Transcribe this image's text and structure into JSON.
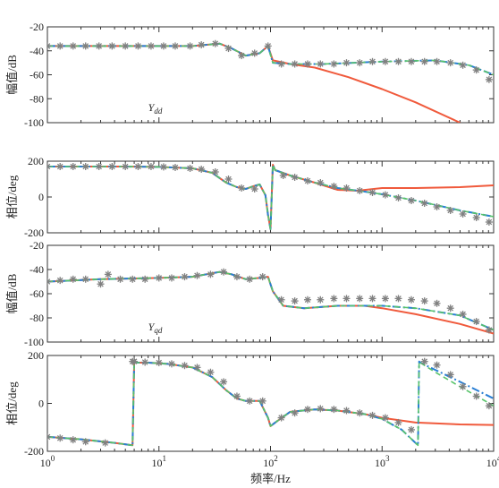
{
  "chart_data": {
    "type": "line",
    "xlabel": "频率/Hz",
    "xscale": "log",
    "xlim": [
      1,
      10000
    ],
    "x_tick_labels": [
      "10^0",
      "10^1",
      "10^2",
      "10^3",
      "10^4"
    ],
    "colors": {
      "red": "#f05a3c",
      "blue_dashdot": "#2a7fd4",
      "green_dash": "#58c36a",
      "marker": "#808080"
    },
    "panels": [
      {
        "ylabel": "幅值/dB",
        "ylim": [
          -100,
          -20
        ],
        "yticks": [
          "-20",
          "-40",
          "-60",
          "-80",
          "-100"
        ],
        "annotation_main": "Y",
        "annotation_sub": "dd",
        "series": [
          {
            "color": "red",
            "x": [
              1,
              5,
              10,
              20,
              35,
              45,
              60,
              80,
              95,
              105,
              150,
              250,
              500,
              1000,
              2000,
              5000
            ],
            "y": [
              -36,
              -36,
              -36,
              -36,
              -34,
              -38,
              -44,
              -42,
              -36,
              -48,
              -51,
              -54,
              -62,
              -72,
              -83,
              -100
            ]
          },
          {
            "color": "blue_dashdot",
            "x": [
              1,
              5,
              10,
              20,
              35,
              45,
              60,
              80,
              95,
              105,
              150,
              300,
              1000,
              3000,
              6000,
              10000
            ],
            "y": [
              -36,
              -36,
              -36,
              -36,
              -34,
              -38,
              -44,
              -42,
              -36,
              -50,
              -51,
              -51,
              -49,
              -48,
              -52,
              -60
            ]
          },
          {
            "color": "green_dash",
            "x": [
              1,
              5,
              10,
              20,
              35,
              45,
              60,
              80,
              95,
              105,
              150,
              300,
              1000,
              3000,
              6000,
              10000
            ],
            "y": [
              -36,
              -36,
              -36,
              -36,
              -34,
              -38,
              -44,
              -42,
              -36,
              -50,
              -51,
              -51,
              -49,
              -48,
              -52,
              -60
            ]
          },
          {
            "color": "marker",
            "x": [
              1,
              1.3,
              1.7,
              2.2,
              2.9,
              3.8,
              5,
              6.5,
              8.5,
              11,
              14,
              19,
              24,
              32,
              42,
              55,
              72,
              95,
              125,
              165,
              215,
              280,
              370,
              480,
              630,
              820,
              1070,
              1400,
              1830,
              2400,
              3100,
              4100,
              5300,
              7000,
              9100
            ],
            "y": [
              -36,
              -36,
              -36,
              -36,
              -36,
              -36,
              -36,
              -36,
              -36,
              -36,
              -36,
              -36,
              -35,
              -34,
              -38,
              -44,
              -42,
              -36,
              -51,
              -51,
              -51,
              -51,
              -51,
              -50,
              -50,
              -49,
              -49,
              -49,
              -49,
              -49,
              -49,
              -50,
              -52,
              -56,
              -64
            ]
          }
        ]
      },
      {
        "ylabel": "相位/deg",
        "ylim": [
          -200,
          200
        ],
        "yticks": [
          "200",
          "0",
          "-200"
        ],
        "series": [
          {
            "color": "red",
            "x": [
              1,
              5,
              10,
              20,
              30,
              40,
              50,
              60,
              70,
              80,
              90,
              95,
              100,
              105,
              110,
              150,
              250,
              400,
              600,
              1000,
              2000,
              5000,
              10000
            ],
            "y": [
              170,
              170,
              168,
              160,
              135,
              80,
              55,
              45,
              60,
              70,
              10,
              -100,
              -180,
              180,
              150,
              120,
              80,
              40,
              35,
              50,
              50,
              55,
              65
            ]
          },
          {
            "color": "blue_dashdot",
            "x": [
              1,
              5,
              10,
              20,
              30,
              40,
              50,
              60,
              70,
              80,
              90,
              95,
              100,
              105,
              110,
              150,
              250,
              400,
              700,
              1000,
              2000,
              5000,
              10000
            ],
            "y": [
              170,
              170,
              168,
              160,
              135,
              80,
              55,
              45,
              60,
              70,
              10,
              -100,
              -180,
              180,
              150,
              120,
              80,
              50,
              30,
              15,
              -20,
              -75,
              -110
            ]
          },
          {
            "color": "green_dash",
            "x": [
              1,
              5,
              10,
              20,
              30,
              40,
              50,
              60,
              70,
              80,
              90,
              95,
              100,
              105,
              110,
              150,
              250,
              400,
              700,
              1000,
              2000,
              5000,
              10000
            ],
            "y": [
              170,
              170,
              168,
              160,
              135,
              80,
              55,
              45,
              60,
              70,
              10,
              -100,
              -180,
              180,
              150,
              120,
              80,
              50,
              30,
              15,
              -20,
              -75,
              -110
            ]
          },
          {
            "color": "marker",
            "x": [
              1,
              1.3,
              1.7,
              2.2,
              2.9,
              3.8,
              5,
              6.5,
              8.5,
              11,
              14,
              19,
              24,
              32,
              42,
              55,
              72,
              130,
              165,
              215,
              280,
              370,
              480,
              630,
              820,
              1070,
              1400,
              1830,
              2400,
              3100,
              4100,
              5300,
              7000,
              9100
            ],
            "y": [
              170,
              170,
              170,
              170,
              170,
              170,
              170,
              170,
              170,
              168,
              165,
              160,
              155,
              140,
              100,
              50,
              45,
              120,
              110,
              90,
              80,
              60,
              50,
              35,
              25,
              12,
              -5,
              -20,
              -35,
              -55,
              -75,
              -95,
              -115,
              -140
            ]
          }
        ]
      },
      {
        "ylabel": "幅值/dB",
        "ylim": [
          -100,
          -20
        ],
        "yticks": [
          "-20",
          "-40",
          "-60",
          "-80",
          "-100"
        ],
        "annotation_main": "Y",
        "annotation_sub": "qd",
        "series": [
          {
            "color": "red",
            "x": [
              1,
              3,
              10,
              20,
              35,
              45,
              60,
              80,
              95,
              105,
              130,
              200,
              400,
              700,
              1000,
              2000,
              5000,
              10000
            ],
            "y": [
              -50,
              -48,
              -47,
              -46,
              -42,
              -44,
              -48,
              -47,
              -46,
              -58,
              -70,
              -72,
              -70,
              -70,
              -72,
              -77,
              -85,
              -93
            ]
          },
          {
            "color": "blue_dashdot",
            "x": [
              1,
              3,
              10,
              20,
              35,
              45,
              60,
              80,
              95,
              105,
              130,
              200,
              400,
              700,
              1000,
              2000,
              5000,
              10000
            ],
            "y": [
              -50,
              -48,
              -47,
              -46,
              -42,
              -44,
              -48,
              -47,
              -46,
              -58,
              -70,
              -72,
              -70,
              -70,
              -70,
              -72,
              -78,
              -90
            ]
          },
          {
            "color": "green_dash",
            "x": [
              1,
              3,
              10,
              20,
              35,
              45,
              60,
              80,
              95,
              105,
              130,
              200,
              400,
              700,
              1000,
              2000,
              5000,
              10000
            ],
            "y": [
              -50,
              -48,
              -47,
              -46,
              -42,
              -44,
              -48,
              -47,
              -46,
              -58,
              -70,
              -72,
              -70,
              -70,
              -70,
              -72,
              -78,
              -90
            ]
          },
          {
            "color": "marker",
            "x": [
              1,
              1.3,
              1.7,
              2.2,
              3,
              3.5,
              4.5,
              5.8,
              7.5,
              10,
              13,
              17,
              22,
              29,
              38,
              50,
              65,
              85,
              125,
              165,
              215,
              280,
              370,
              480,
              630,
              820,
              1070,
              1400,
              1830,
              2400,
              3100,
              4100,
              5300,
              7000,
              9100
            ],
            "y": [
              -50,
              -49,
              -48,
              -48,
              -52,
              -44,
              -48,
              -48,
              -48,
              -47,
              -47,
              -46,
              -45,
              -44,
              -42,
              -46,
              -48,
              -46,
              -65,
              -66,
              -65,
              -65,
              -64,
              -64,
              -64,
              -64,
              -64,
              -64,
              -65,
              -66,
              -68,
              -72,
              -77,
              -83,
              -90
            ]
          }
        ]
      },
      {
        "ylabel": "相位/deg",
        "ylim": [
          -200,
          200
        ],
        "yticks": [
          "200",
          "0",
          "-200"
        ],
        "series": [
          {
            "color": "red",
            "x": [
              1,
              2,
              4,
              5.8,
              6,
              6.2,
              8,
              12,
              20,
              30,
              40,
              50,
              60,
              80,
              95,
              100,
              110,
              150,
              250,
              400,
              700,
              1000,
              2000,
              5000,
              10000
            ],
            "y": [
              -140,
              -150,
              -165,
              -175,
              175,
              170,
              170,
              165,
              150,
              110,
              55,
              20,
              10,
              10,
              -60,
              -95,
              -80,
              -35,
              -25,
              -30,
              -45,
              -60,
              -80,
              -88,
              -90
            ]
          },
          {
            "color": "blue_dashdot",
            "x": [
              1,
              2,
              4,
              5.8,
              6,
              6.2,
              8,
              12,
              20,
              30,
              40,
              50,
              60,
              80,
              95,
              100,
              110,
              150,
              250,
              400,
              700,
              1000,
              1500,
              2100,
              2150,
              2200,
              3000,
              5000,
              10000
            ],
            "y": [
              -140,
              -150,
              -165,
              -175,
              175,
              170,
              170,
              165,
              150,
              110,
              55,
              20,
              10,
              10,
              -60,
              -95,
              -80,
              -35,
              -25,
              -30,
              -45,
              -65,
              -110,
              -175,
              175,
              170,
              140,
              90,
              20
            ]
          },
          {
            "color": "green_dash",
            "x": [
              1,
              2,
              4,
              5.8,
              6,
              6.2,
              8,
              12,
              20,
              30,
              40,
              50,
              60,
              80,
              95,
              100,
              110,
              150,
              250,
              400,
              700,
              1000,
              1500,
              2100,
              2150,
              2200,
              3000,
              5000,
              10000
            ],
            "y": [
              -140,
              -150,
              -165,
              -175,
              175,
              170,
              170,
              165,
              150,
              110,
              55,
              20,
              10,
              10,
              -60,
              -95,
              -80,
              -35,
              -25,
              -30,
              -45,
              -65,
              -110,
              -175,
              175,
              170,
              130,
              70,
              -10
            ]
          },
          {
            "color": "marker",
            "x": [
              1,
              1.3,
              1.7,
              2.2,
              3.3,
              5.8,
              6,
              7.5,
              10,
              13,
              17,
              22,
              29,
              38,
              50,
              65,
              85,
              125,
              165,
              215,
              280,
              370,
              480,
              630,
              820,
              1070,
              1400,
              1830,
              2400,
              3100,
              4100,
              5300,
              7000,
              9100
            ],
            "y": [
              -140,
              -145,
              -152,
              -160,
              -165,
              175,
              175,
              172,
              170,
              165,
              158,
              150,
              130,
              90,
              30,
              10,
              10,
              -60,
              -40,
              -25,
              -22,
              -25,
              -30,
              -40,
              -50,
              -60,
              -80,
              -110,
              175,
              160,
              120,
              70,
              30,
              -10
            ]
          }
        ]
      }
    ]
  }
}
